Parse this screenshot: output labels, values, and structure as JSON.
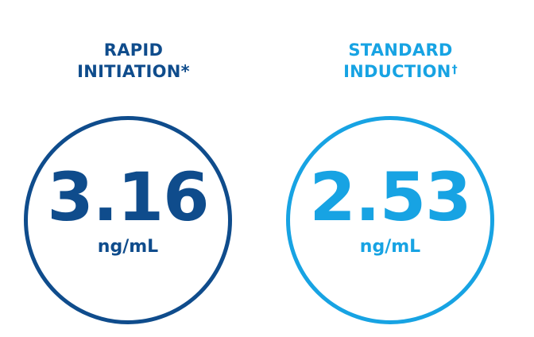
{
  "colors": {
    "rapid": "#0f4c8c",
    "standard": "#17a3e3"
  },
  "rapid": {
    "heading_line1": "RAPID",
    "heading_line2": "INITIATION",
    "heading_mark": "*",
    "value": "3.16",
    "unit": "ng/mL"
  },
  "standard": {
    "heading_line1": "STANDARD",
    "heading_line2": "INDUCTION",
    "heading_mark": "†",
    "value": "2.53",
    "unit": "ng/mL"
  }
}
